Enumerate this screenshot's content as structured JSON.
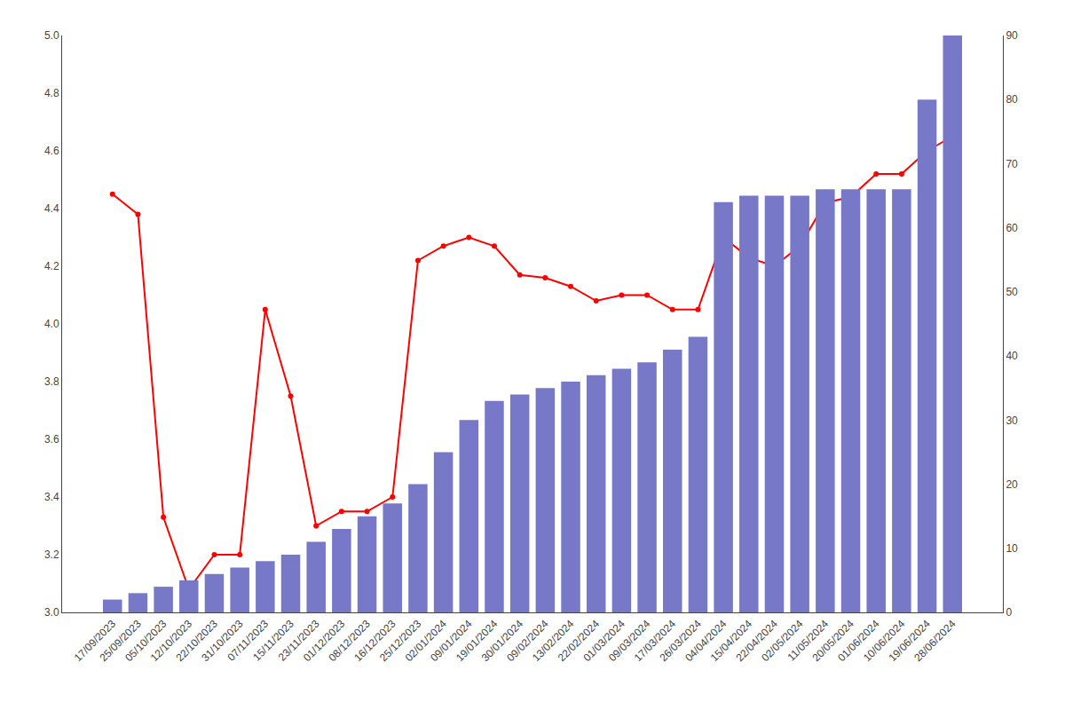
{
  "chart_data": {
    "type": "bar",
    "categories": [
      "17/09/2023",
      "25/09/2023",
      "05/10/2023",
      "12/10/2023",
      "22/10/2023",
      "31/10/2023",
      "07/11/2023",
      "15/11/2023",
      "23/11/2023",
      "01/12/2023",
      "08/12/2023",
      "16/12/2023",
      "25/12/2023",
      "02/01/2024",
      "09/01/2024",
      "19/01/2024",
      "30/01/2024",
      "09/02/2024",
      "13/02/2024",
      "22/02/2024",
      "01/03/2024",
      "09/03/2024",
      "17/03/2024",
      "26/03/2024",
      "04/04/2024",
      "15/04/2024",
      "22/04/2024",
      "02/05/2024",
      "11/05/2024",
      "20/05/2024",
      "01/06/2024",
      "10/06/2024",
      "19/06/2024",
      "28/06/2024"
    ],
    "series": [
      {
        "type": "bar",
        "color": "#7779c8",
        "axis": "y2",
        "values": [
          2,
          3,
          4,
          5,
          6,
          7,
          8,
          9,
          11,
          13,
          15,
          17,
          20,
          25,
          30,
          33,
          34,
          35,
          36,
          37,
          38,
          39,
          41,
          43,
          64,
          65,
          65,
          65,
          66,
          66,
          66,
          66,
          80,
          90
        ]
      },
      {
        "type": "line",
        "color": "#ff0000",
        "marker": "circle",
        "values": [
          4.45,
          4.38,
          3.33,
          3.08,
          3.2,
          3.2,
          4.05,
          3.75,
          3.3,
          3.35,
          3.35,
          3.4,
          4.22,
          4.27,
          4.3,
          4.27,
          4.17,
          4.16,
          4.13,
          4.08,
          4.1,
          4.1,
          4.05,
          4.05,
          4.3,
          4.23,
          4.2,
          4.27,
          4.42,
          4.44,
          4.52,
          4.52,
          4.6,
          4.65
        ]
      }
    ],
    "ylim": [
      3.0,
      5.0
    ],
    "yticks": [
      {
        "value": 3,
        "label": "3.0"
      },
      3.2,
      3.4,
      3.6,
      3.8,
      {
        "value": 4,
        "label": "4.0"
      },
      4.2,
      4.4,
      4.6,
      4.8,
      {
        "value": 5,
        "label": "5.0"
      }
    ],
    "y2lim": [
      0,
      90
    ],
    "y2ticks": [
      0,
      10,
      20,
      30,
      40,
      50,
      60,
      70,
      80,
      90
    ],
    "grid": false
  }
}
